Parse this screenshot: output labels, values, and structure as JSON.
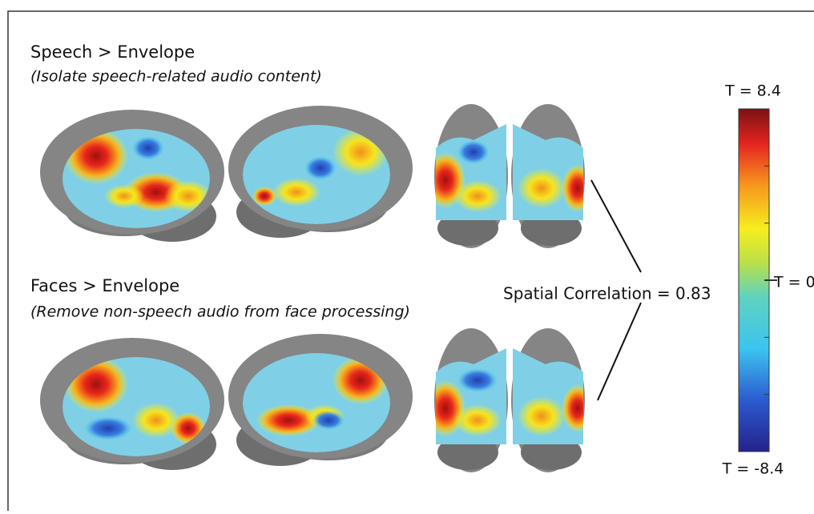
{
  "panels": [
    {
      "title": "Speech > Envelope",
      "subtitle": "(Isolate speech-related audio content)"
    },
    {
      "title": "Faces > Envelope",
      "subtitle": "(Remove non-speech audio from face processing)"
    }
  ],
  "correlation": "Spatial Correlation = 0.83",
  "colorbar": {
    "max_label": "T = 8.4",
    "mid_label": "T = 0",
    "min_label": "T = -8.4"
  }
}
